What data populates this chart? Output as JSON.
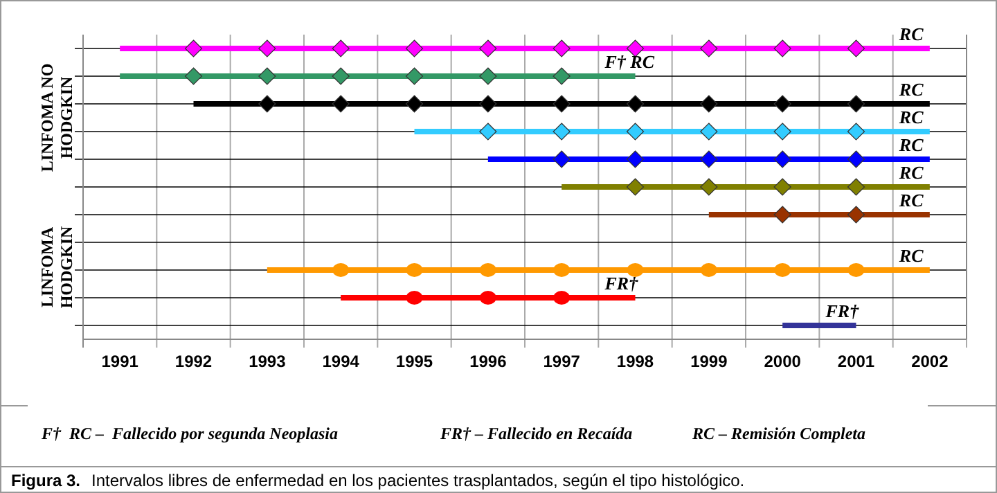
{
  "chart_data": {
    "type": "bar",
    "orientation": "horizontal",
    "title": "Figura 3.",
    "subtitle": "Intervalos libres de enfermedad en los pacientes trasplantados, según el tipo histológico.",
    "categories": [
      null,
      null,
      null,
      null,
      null,
      null,
      null,
      null,
      null,
      null,
      null
    ],
    "colors": [
      "#ff00ff",
      "#339966",
      "#000000",
      "#33ccff",
      "#0000ff",
      "#808000",
      "#993300",
      null,
      "#ff9900",
      "#ff0000",
      "#333399"
    ],
    "base": [
      1991,
      1991,
      1992,
      1995,
      1996,
      1997,
      1999,
      null,
      1993,
      1994,
      2000
    ],
    "values": [
      11,
      7,
      10,
      7,
      6,
      5,
      3,
      null,
      9,
      4,
      1
    ],
    "value_labels": [
      "RC",
      "F† RC",
      "RC",
      "RC",
      "RC",
      "RC",
      "RC",
      null,
      "RC",
      "FR†",
      "FR†"
    ],
    "xlim": [
      1990.5,
      2002.5
    ],
    "xticks": [
      1991,
      1992,
      1993,
      1994,
      1995,
      1996,
      1997,
      1998,
      1999,
      2000,
      2001,
      2002
    ],
    "grid": true,
    "annotations": [
      "LINFOMA NO HODGKIN",
      "LINFOMA HODGKIN",
      "F†  RC –  Fallecido por segunda Neoplasia",
      "FR† – Fallecido en Recaída",
      "RC – Remisión Completa"
    ]
  }
}
